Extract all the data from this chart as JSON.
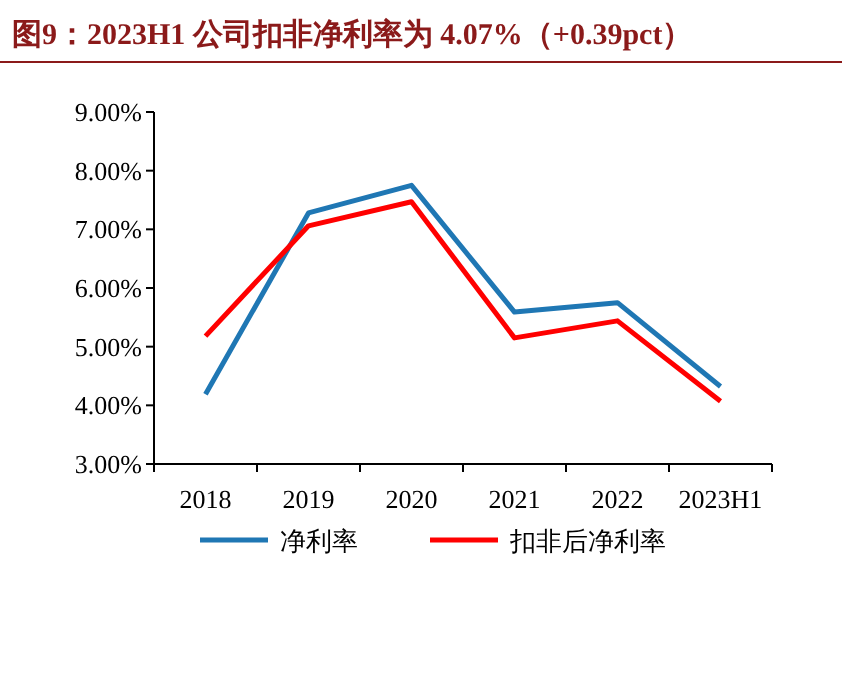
{
  "chart_data": {
    "type": "line",
    "title": "图9：2023H1 公司扣非净利率为 4.07%（+0.39pct）",
    "categories": [
      "2018",
      "2019",
      "2020",
      "2021",
      "2022",
      "2023H1"
    ],
    "series": [
      {
        "name": "净利率",
        "color": "#1f77b4",
        "values": [
          4.19,
          7.28,
          7.75,
          5.59,
          5.75,
          4.32
        ]
      },
      {
        "name": "扣非后净利率",
        "color": "#ff0000",
        "values": [
          5.18,
          7.06,
          7.47,
          5.15,
          5.44,
          4.07
        ]
      }
    ],
    "ylim": [
      3,
      9
    ],
    "yticks": [
      {
        "value": 3,
        "label": "3.00%"
      },
      {
        "value": 4,
        "label": "4.00%"
      },
      {
        "value": 5,
        "label": "5.00%"
      },
      {
        "value": 6,
        "label": "6.00%"
      },
      {
        "value": 7,
        "label": "7.00%"
      },
      {
        "value": 8,
        "label": "8.00%"
      },
      {
        "value": 9,
        "label": "9.00%"
      }
    ],
    "grid": false,
    "legend": "bottom",
    "marker": "none",
    "line_style": "solid"
  }
}
